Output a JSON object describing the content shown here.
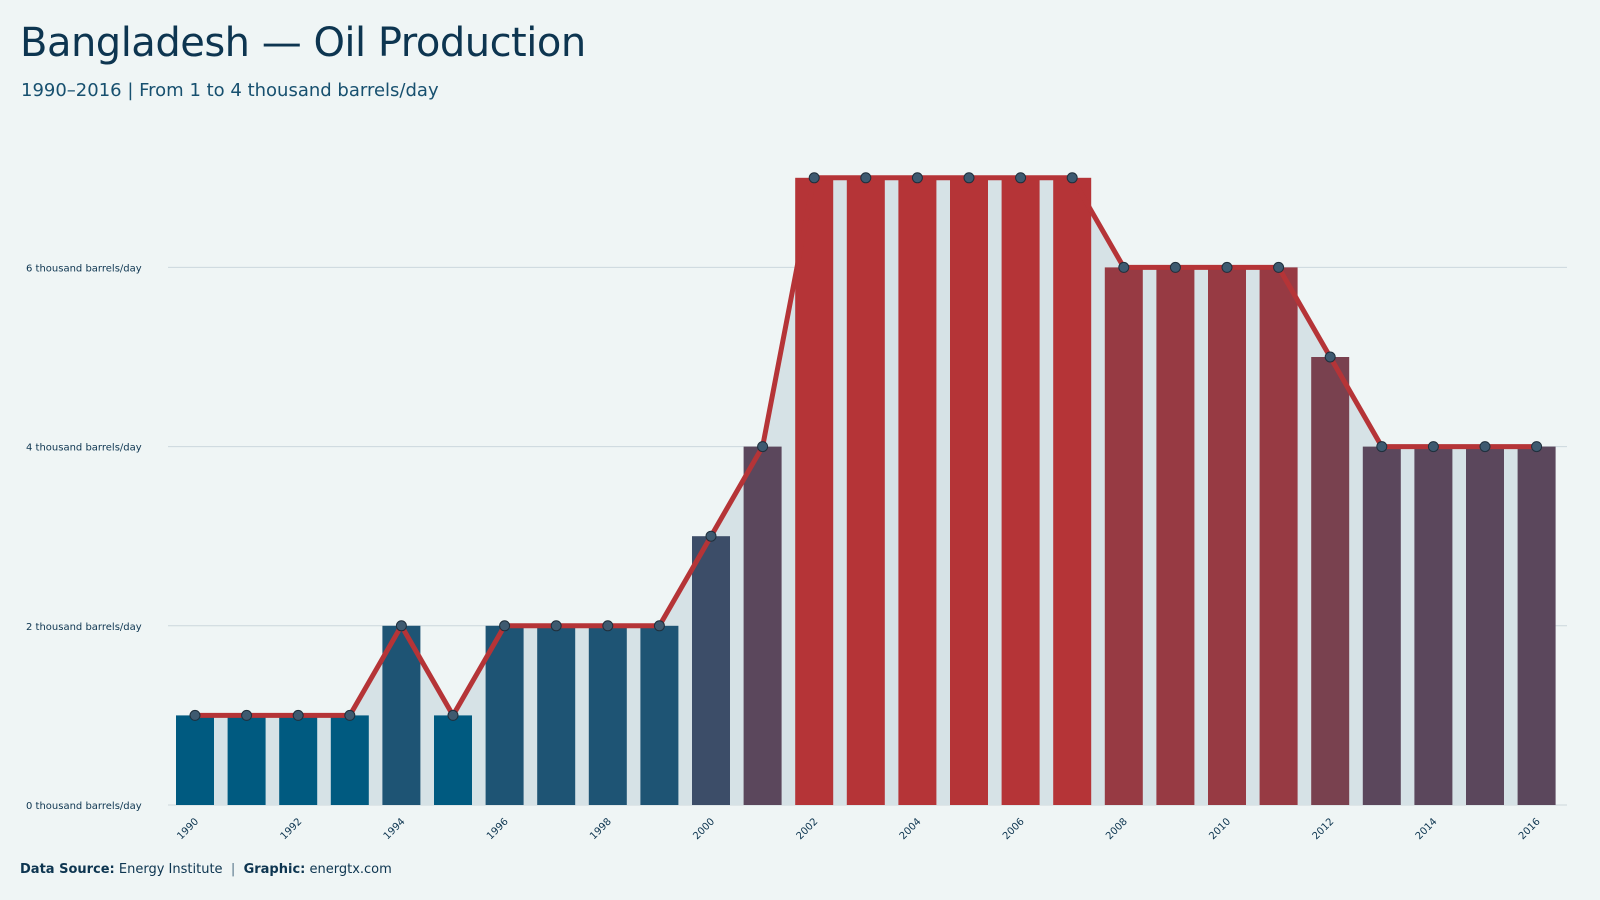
{
  "title": "Bangladesh  — Oil Production",
  "subtitle": "1990–2016 | From 1 to 4 thousand barrels/day",
  "footer": {
    "source_label": "Data Source:",
    "source_value": "Energy Institute",
    "separator": "|",
    "graphic_label": "Graphic:",
    "graphic_value": "energtx.com"
  },
  "colors": {
    "background": "#eff5f5",
    "area": "#d6e2e6",
    "line": "#b53437",
    "dot": "#3e5a70",
    "low": "#005a80",
    "high": "#b53437",
    "grid": "#ccd7dc"
  },
  "chart_data": {
    "type": "bar",
    "title": "Bangladesh  — Oil Production",
    "subtitle": "1990–2016 | From 1 to 4 thousand barrels/day",
    "categories": [
      "1990",
      "1991",
      "1992",
      "1993",
      "1994",
      "1995",
      "1996",
      "1997",
      "1998",
      "1999",
      "2000",
      "2001",
      "2002",
      "2003",
      "2004",
      "2005",
      "2006",
      "2007",
      "2008",
      "2009",
      "2010",
      "2011",
      "2012",
      "2013",
      "2014",
      "2015",
      "2016"
    ],
    "x_tick_labels": [
      "1990",
      "1992",
      "1994",
      "1996",
      "1998",
      "2000",
      "2002",
      "2004",
      "2006",
      "2008",
      "2010",
      "2012",
      "2014",
      "2016"
    ],
    "series": [
      {
        "values": [
          1,
          1,
          1,
          1,
          2,
          1,
          2,
          2,
          2,
          2,
          3,
          4,
          7,
          7,
          7,
          7,
          7,
          7,
          6,
          6,
          6,
          6,
          5,
          4,
          4,
          4,
          4
        ]
      }
    ],
    "overlay": "line with markers plus shaded area over the same values",
    "y_tick_labels": [
      "0 thousand barrels/day",
      "2 thousand barrels/day",
      "4 thousand barrels/day",
      "6 thousand barrels/day"
    ],
    "y_ticks": [
      0,
      2,
      4,
      6
    ],
    "ylim": [
      0,
      7
    ],
    "grid": "horizontal",
    "xlabel": "",
    "ylabel": ""
  }
}
